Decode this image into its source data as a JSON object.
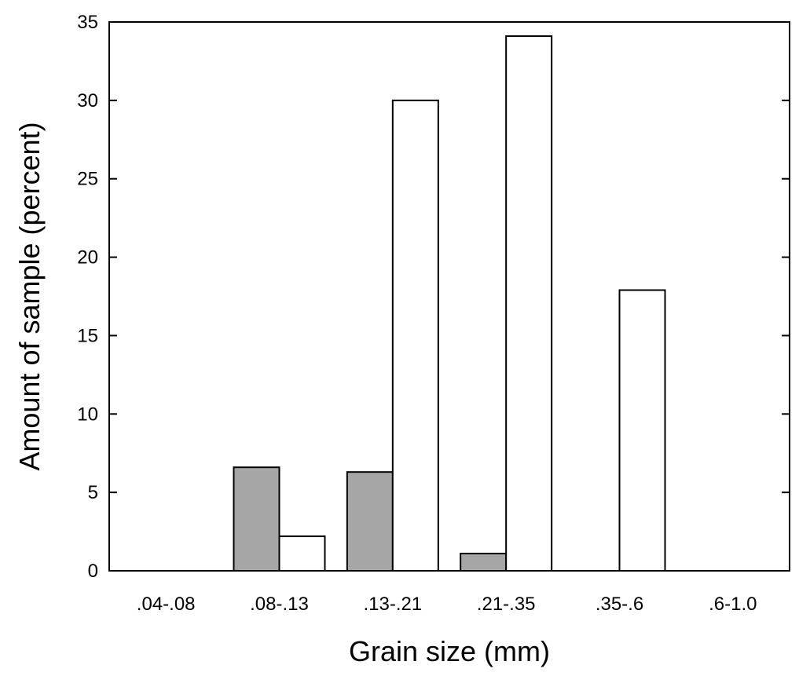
{
  "chart_data": {
    "type": "bar",
    "title": "",
    "xlabel": "Grain size (mm)",
    "ylabel": "Amount of sample (percent)",
    "categories": [
      ".04-.08",
      ".08-.13",
      ".13-.21",
      ".21-.35",
      ".35-.6",
      ".6-1.0"
    ],
    "series": [
      {
        "color": "#a6a6a6",
        "values": [
          0,
          6.6,
          6.3,
          1.1,
          0,
          0
        ]
      },
      {
        "color": "#ffffff",
        "values": [
          0,
          2.2,
          30.0,
          34.1,
          17.9,
          0
        ]
      }
    ],
    "ylim": [
      0,
      35
    ],
    "yticks": [
      0,
      5,
      10,
      15,
      20,
      25,
      30,
      35
    ],
    "grid": false,
    "legend": "none"
  }
}
